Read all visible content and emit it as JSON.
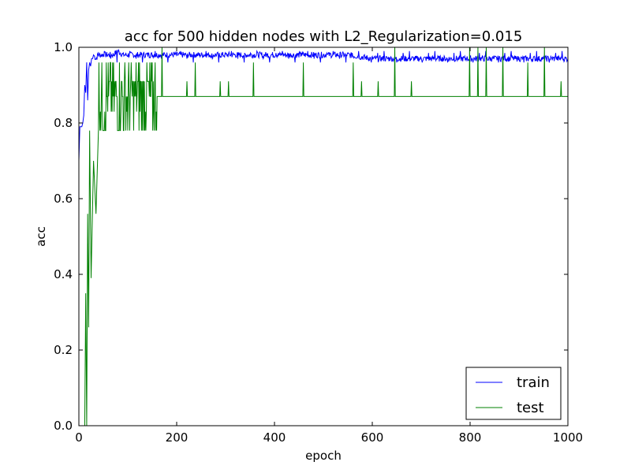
{
  "chart_data": {
    "type": "line",
    "title": "acc for 500 hidden nodes with L2_Regularization=0.015",
    "xlabel": "epoch",
    "ylabel": "acc",
    "xlim": [
      0,
      1000
    ],
    "ylim": [
      0.0,
      1.0
    ],
    "xticks": [
      0,
      200,
      400,
      600,
      800,
      1000
    ],
    "xtick_labels": [
      "0",
      "200",
      "400",
      "600",
      "800",
      "1000"
    ],
    "yticks": [
      0.0,
      0.2,
      0.4,
      0.6,
      0.8,
      1.0
    ],
    "ytick_labels": [
      "0.0",
      "0.2",
      "0.4",
      "0.6",
      "0.8",
      "1.0"
    ],
    "grid": false,
    "legend": {
      "position": "lower-right",
      "entries": [
        "train",
        "test"
      ]
    },
    "series": [
      {
        "name": "train",
        "color": "#0000ff",
        "x": [
          0,
          2,
          4,
          6,
          8,
          10,
          12,
          14,
          16,
          18,
          20,
          22,
          24,
          26,
          28,
          30,
          35,
          40,
          50,
          60,
          70,
          80,
          90,
          100,
          120,
          150,
          200,
          250,
          300,
          350,
          400,
          450,
          500,
          550,
          600,
          650,
          700,
          750,
          800,
          850,
          900,
          950,
          1000
        ],
        "values": [
          0.7,
          0.79,
          0.79,
          0.79,
          0.8,
          0.82,
          0.9,
          0.88,
          0.96,
          0.86,
          0.94,
          0.96,
          0.95,
          0.97,
          0.97,
          0.98,
          0.97,
          0.98,
          0.98,
          0.98,
          0.98,
          0.99,
          0.98,
          0.98,
          0.98,
          0.98,
          0.98,
          0.98,
          0.98,
          0.98,
          0.98,
          0.98,
          0.98,
          0.98,
          0.97,
          0.97,
          0.97,
          0.97,
          0.97,
          0.97,
          0.97,
          0.97,
          0.97
        ],
        "noise": 0.008,
        "spikes": {
          "values": [
            0.99,
            0.97,
            0.96,
            0.985
          ],
          "every": 13
        }
      },
      {
        "name": "test",
        "color": "#008000",
        "x": [
          0,
          12,
          14,
          16,
          18,
          20,
          22,
          25,
          30,
          35,
          40,
          50,
          60,
          80,
          100,
          150,
          200,
          300,
          400,
          500,
          600,
          700,
          800,
          900,
          1000
        ],
        "values": [
          0.0,
          0.0,
          0.35,
          0.0,
          0.56,
          0.26,
          0.78,
          0.39,
          0.7,
          0.56,
          0.78,
          0.78,
          0.8,
          0.83,
          0.87,
          0.87,
          0.87,
          0.87,
          0.87,
          0.87,
          0.87,
          0.87,
          0.87,
          0.87,
          0.87
        ],
        "jitter_before": 160,
        "jitter_levels": [
          0.78,
          0.83,
          0.87,
          0.91,
          0.96
        ],
        "spike_levels": [
          0.91,
          0.96,
          1.0
        ],
        "spike_every": 17
      }
    ]
  }
}
